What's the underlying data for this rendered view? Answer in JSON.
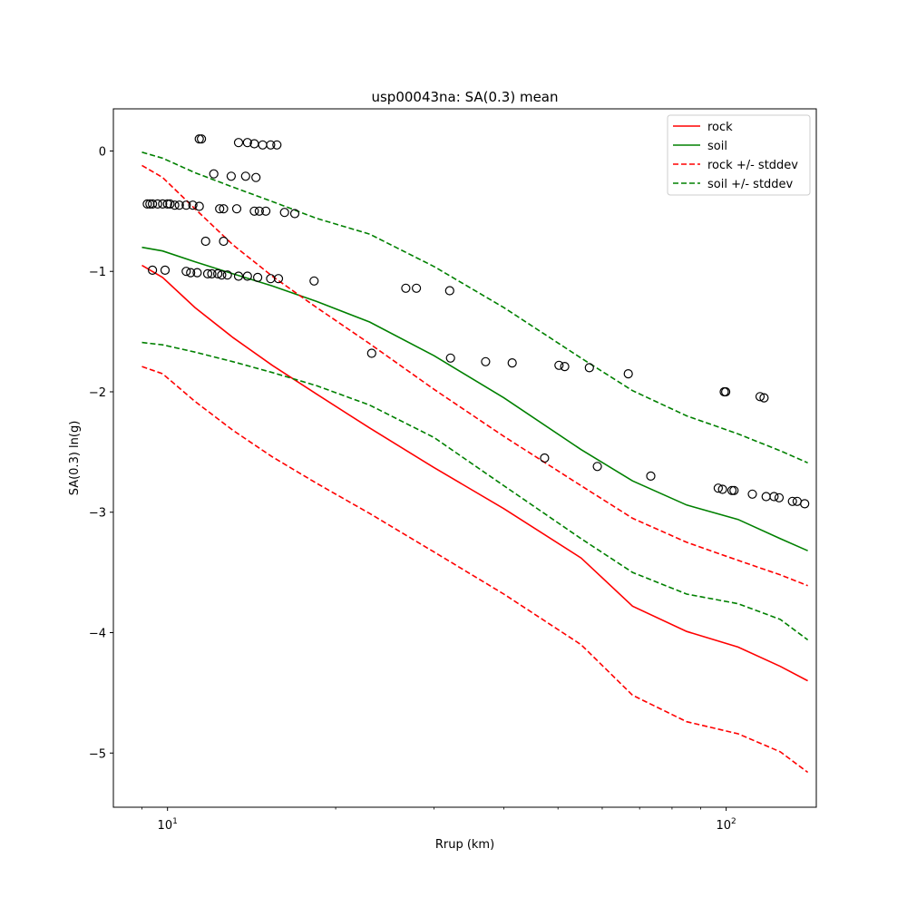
{
  "chart_data": {
    "type": "line",
    "title": "usp00043na: SA(0.3) mean",
    "xlabel": "Rrup (km)",
    "ylabel": "SA(0.3) ln(g)",
    "xscale": "log",
    "xlim": [
      8.0,
      145.0
    ],
    "ylim": [
      -5.45,
      0.35
    ],
    "grid": false,
    "legend_position": "top-right",
    "x_ticks": [
      {
        "value": 10,
        "base": "10",
        "exp": "1"
      },
      {
        "value": 100,
        "base": "10",
        "exp": "2"
      }
    ],
    "y_ticks": [
      {
        "value": 0,
        "label": "0"
      },
      {
        "value": -1,
        "label": "−1"
      },
      {
        "value": -2,
        "label": "−2"
      },
      {
        "value": -3,
        "label": "−3"
      },
      {
        "value": -4,
        "label": "−4"
      },
      {
        "value": -5,
        "label": "−5"
      }
    ],
    "legend": [
      {
        "label": "rock",
        "color": "#ff0000",
        "dashed": false
      },
      {
        "label": "soil",
        "color": "#008000",
        "dashed": false
      },
      {
        "label": "rock +/- stddev",
        "color": "#ff0000",
        "dashed": true
      },
      {
        "label": "soil +/- stddev",
        "color": "#008000",
        "dashed": true
      }
    ],
    "series": [
      {
        "name": "rock",
        "color": "#ff0000",
        "dashed": false,
        "x": [
          9.0,
          9.8,
          11.2,
          13.1,
          15.4,
          18.5,
          23.0,
          30.0,
          40.0,
          55.0,
          68.0,
          85.0,
          105.0,
          125.0,
          140.0
        ],
        "y": [
          -0.95,
          -1.05,
          -1.3,
          -1.55,
          -1.78,
          -2.02,
          -2.3,
          -2.63,
          -2.97,
          -3.38,
          -3.78,
          -3.99,
          -4.12,
          -4.28,
          -4.4
        ]
      },
      {
        "name": "soil",
        "color": "#008000",
        "dashed": false,
        "x": [
          9.0,
          9.8,
          11.2,
          13.1,
          15.4,
          18.5,
          23.0,
          30.0,
          40.0,
          55.0,
          68.0,
          85.0,
          105.0,
          125.0,
          140.0
        ],
        "y": [
          -0.8,
          -0.83,
          -0.92,
          -1.02,
          -1.12,
          -1.25,
          -1.42,
          -1.7,
          -2.05,
          -2.48,
          -2.74,
          -2.94,
          -3.06,
          -3.22,
          -3.32
        ]
      },
      {
        "name": "rock +/- stddev",
        "color": "#ff0000",
        "dashed": true,
        "x": [
          9.0,
          9.8,
          11.2,
          13.1,
          15.4,
          18.5,
          23.0,
          30.0,
          40.0,
          55.0,
          68.0,
          85.0,
          105.0,
          125.0,
          140.0
        ],
        "y": [
          -0.12,
          -0.22,
          -0.48,
          -0.78,
          -1.04,
          -1.3,
          -1.6,
          -1.98,
          -2.37,
          -2.78,
          -3.05,
          -3.25,
          -3.4,
          -3.52,
          -3.61
        ]
      },
      {
        "name": "rock +/- stddev",
        "color": "#ff0000",
        "dashed": true,
        "x": [
          9.0,
          9.8,
          11.2,
          13.1,
          15.4,
          18.5,
          23.0,
          30.0,
          40.0,
          55.0,
          68.0,
          85.0,
          105.0,
          125.0,
          140.0
        ],
        "y": [
          -1.79,
          -1.85,
          -2.08,
          -2.32,
          -2.54,
          -2.76,
          -3.01,
          -3.33,
          -3.68,
          -4.1,
          -4.52,
          -4.74,
          -4.84,
          -4.99,
          -5.16
        ]
      },
      {
        "name": "soil +/- stddev",
        "color": "#008000",
        "dashed": true,
        "x": [
          9.0,
          9.8,
          11.2,
          13.1,
          15.4,
          18.5,
          23.0,
          30.0,
          40.0,
          55.0,
          68.0,
          85.0,
          105.0,
          125.0,
          140.0
        ],
        "y": [
          -0.01,
          -0.06,
          -0.18,
          -0.3,
          -0.42,
          -0.56,
          -0.69,
          -0.96,
          -1.3,
          -1.72,
          -1.99,
          -2.2,
          -2.35,
          -2.49,
          -2.59
        ]
      },
      {
        "name": "soil +/- stddev",
        "color": "#008000",
        "dashed": true,
        "x": [
          9.0,
          9.8,
          11.2,
          13.1,
          15.4,
          18.5,
          23.0,
          30.0,
          40.0,
          55.0,
          68.0,
          85.0,
          105.0,
          125.0,
          140.0
        ],
        "y": [
          -1.59,
          -1.61,
          -1.67,
          -1.75,
          -1.84,
          -1.95,
          -2.11,
          -2.38,
          -2.78,
          -3.22,
          -3.5,
          -3.68,
          -3.76,
          -3.89,
          -4.06
        ]
      }
    ],
    "observations": {
      "marker": "open-circle",
      "color": "#000000",
      "x": [
        11.4,
        11.5,
        13.4,
        13.9,
        14.3,
        14.8,
        15.3,
        15.7,
        12.1,
        13.0,
        13.8,
        14.4,
        9.2,
        9.3,
        9.4,
        9.6,
        9.8,
        10.0,
        10.1,
        10.3,
        10.5,
        10.8,
        11.1,
        11.4,
        12.4,
        12.6,
        13.3,
        14.3,
        14.6,
        15.0,
        16.2,
        16.9,
        11.7,
        12.6,
        9.4,
        9.9,
        10.8,
        11.0,
        11.3,
        11.8,
        12.0,
        12.3,
        12.5,
        12.8,
        13.4,
        13.9,
        14.5,
        15.3,
        15.8,
        18.3,
        26.7,
        27.9,
        32.0,
        23.2,
        32.1,
        37.1,
        41.4,
        50.2,
        51.4,
        56.9,
        66.8,
        47.3,
        58.8,
        73.3,
        99.2,
        99.8,
        115.0,
        116.9,
        96.8,
        98.5,
        102.4,
        103.3,
        111.4,
        117.9,
        121.8,
        124.4,
        131.4,
        134.0,
        138.2
      ],
      "y": [
        0.1,
        0.1,
        0.07,
        0.07,
        0.06,
        0.05,
        0.05,
        0.05,
        -0.19,
        -0.21,
        -0.21,
        -0.22,
        -0.44,
        -0.44,
        -0.44,
        -0.44,
        -0.44,
        -0.44,
        -0.44,
        -0.45,
        -0.45,
        -0.45,
        -0.45,
        -0.46,
        -0.48,
        -0.48,
        -0.48,
        -0.5,
        -0.5,
        -0.5,
        -0.51,
        -0.52,
        -0.75,
        -0.75,
        -0.99,
        -0.99,
        -1.0,
        -1.01,
        -1.01,
        -1.02,
        -1.02,
        -1.02,
        -1.03,
        -1.03,
        -1.04,
        -1.04,
        -1.05,
        -1.06,
        -1.06,
        -1.08,
        -1.14,
        -1.14,
        -1.16,
        -1.68,
        -1.72,
        -1.75,
        -1.76,
        -1.78,
        -1.79,
        -1.8,
        -1.85,
        -2.55,
        -2.62,
        -2.7,
        -2.0,
        -2.0,
        -2.04,
        -2.05,
        -2.8,
        -2.81,
        -2.82,
        -2.82,
        -2.85,
        -2.87,
        -2.87,
        -2.88,
        -2.91,
        -2.91,
        -2.93
      ]
    }
  }
}
